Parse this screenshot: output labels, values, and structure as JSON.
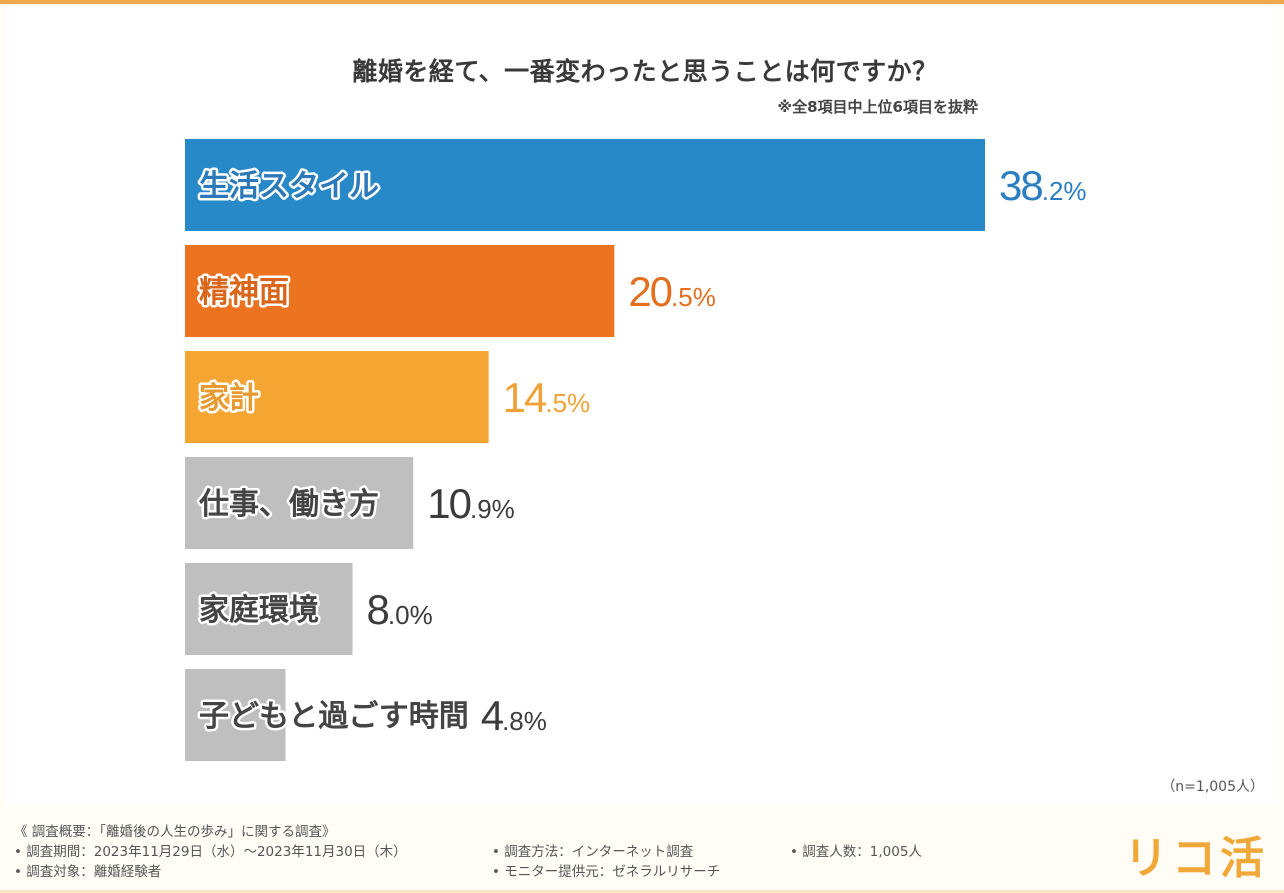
{
  "header": {
    "title": "離婚を経て、一番変わったと思うことは何ですか？",
    "subtitle": "※全8項目中上位6項目を抜粋"
  },
  "chart_data": {
    "type": "bar",
    "orientation": "horizontal",
    "title": "離婚を経て、一番変わったと思うことは何ですか？",
    "subtitle": "※全8項目中上位6項目を抜粋",
    "categories": [
      "生活スタイル",
      "精神面",
      "家計",
      "仕事、働き方",
      "家庭環境",
      "子どもと過ごす時間"
    ],
    "values": [
      38.2,
      20.5,
      14.5,
      10.9,
      8.0,
      4.8
    ],
    "value_labels": [
      "38.2%",
      "20.5%",
      "14.5%",
      "10.9%",
      "8.0%",
      "4.8%"
    ],
    "unit": "%",
    "bar_colors": [
      "#2789c8",
      "#ec7420",
      "#f5a531",
      "#bfbfbf",
      "#bfbfbf",
      "#bfbfbf"
    ],
    "label_colors": [
      "#2b7fc0",
      "#e46f1f",
      "#efa238",
      "#3c3c3c",
      "#3c3c3c",
      "#3c3c3c"
    ],
    "category_text_colors": [
      "#2b79b8",
      "#d9661a",
      "#e79a2f",
      "#444444",
      "#444444",
      "#444444"
    ],
    "xlim": [
      0,
      38.2
    ],
    "xlabel": "",
    "ylabel": "",
    "grid": false,
    "legend": "none",
    "sample_note": "（n=1,005人）"
  },
  "footer": {
    "lines": [
      "《 調査概要：「離婚後の人生の歩み」に関する調査》",
      "• 調査期間：2023年11月29日（水）～2023年11月30日（木）",
      "• 調査対象：離婚経験者",
      "• 調査方法：インターネット調査",
      "• モニター提供元：ゼネラルリサーチ",
      "• 調査人数：1,005人"
    ],
    "logo": "リコ活"
  }
}
